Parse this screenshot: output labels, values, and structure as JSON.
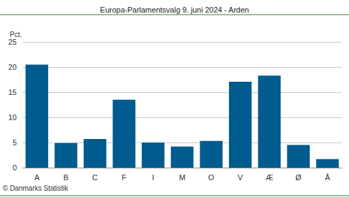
{
  "chart_data": {
    "type": "bar",
    "title": "Europa-Parlamentsvalg 9. juni 2024 - Arden",
    "ylabel": "Pct.",
    "source": "© Danmarks Statistik",
    "categories": [
      "A",
      "B",
      "C",
      "F",
      "I",
      "M",
      "O",
      "V",
      "Æ",
      "Ø",
      "Å"
    ],
    "values": [
      20.5,
      4.9,
      5.7,
      13.5,
      5.0,
      4.2,
      5.3,
      17.1,
      18.3,
      4.5,
      1.7
    ],
    "color": "#005b8e",
    "ylim": [
      0,
      25
    ],
    "yticks": [
      0,
      5,
      10,
      15,
      20,
      25
    ],
    "grid": true
  }
}
